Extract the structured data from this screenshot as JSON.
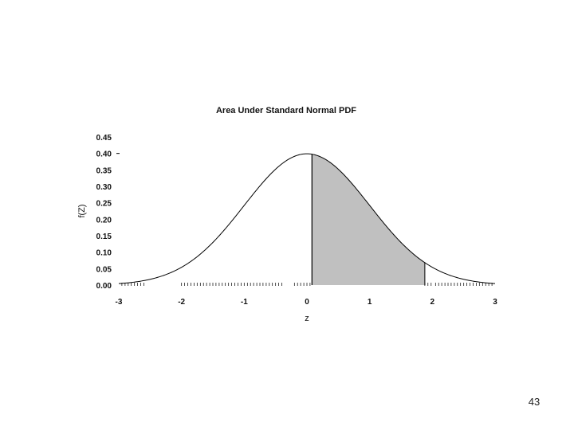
{
  "chart_data": {
    "type": "area",
    "title": "Area Under Standard Normal PDF",
    "xlabel": "z",
    "ylabel": "f(Z)",
    "xlim": [
      -3,
      3
    ],
    "ylim": [
      0,
      0.45
    ],
    "x_ticks": [
      -3,
      -2,
      -1,
      0,
      1,
      2,
      3
    ],
    "y_ticks": [
      "0.00",
      "0.05",
      "0.10",
      "0.15",
      "0.20",
      "0.25",
      "0.30",
      "0.35",
      "0.40",
      "0.45"
    ],
    "curve": {
      "name": "",
      "function": "standard normal pdf",
      "mean": 0,
      "sd": 1
    },
    "shaded_region": {
      "from": 0.08,
      "to": 1.88,
      "color": "#c0c0c0"
    },
    "grid": false,
    "legend": "none"
  },
  "page": {
    "number": "43"
  }
}
